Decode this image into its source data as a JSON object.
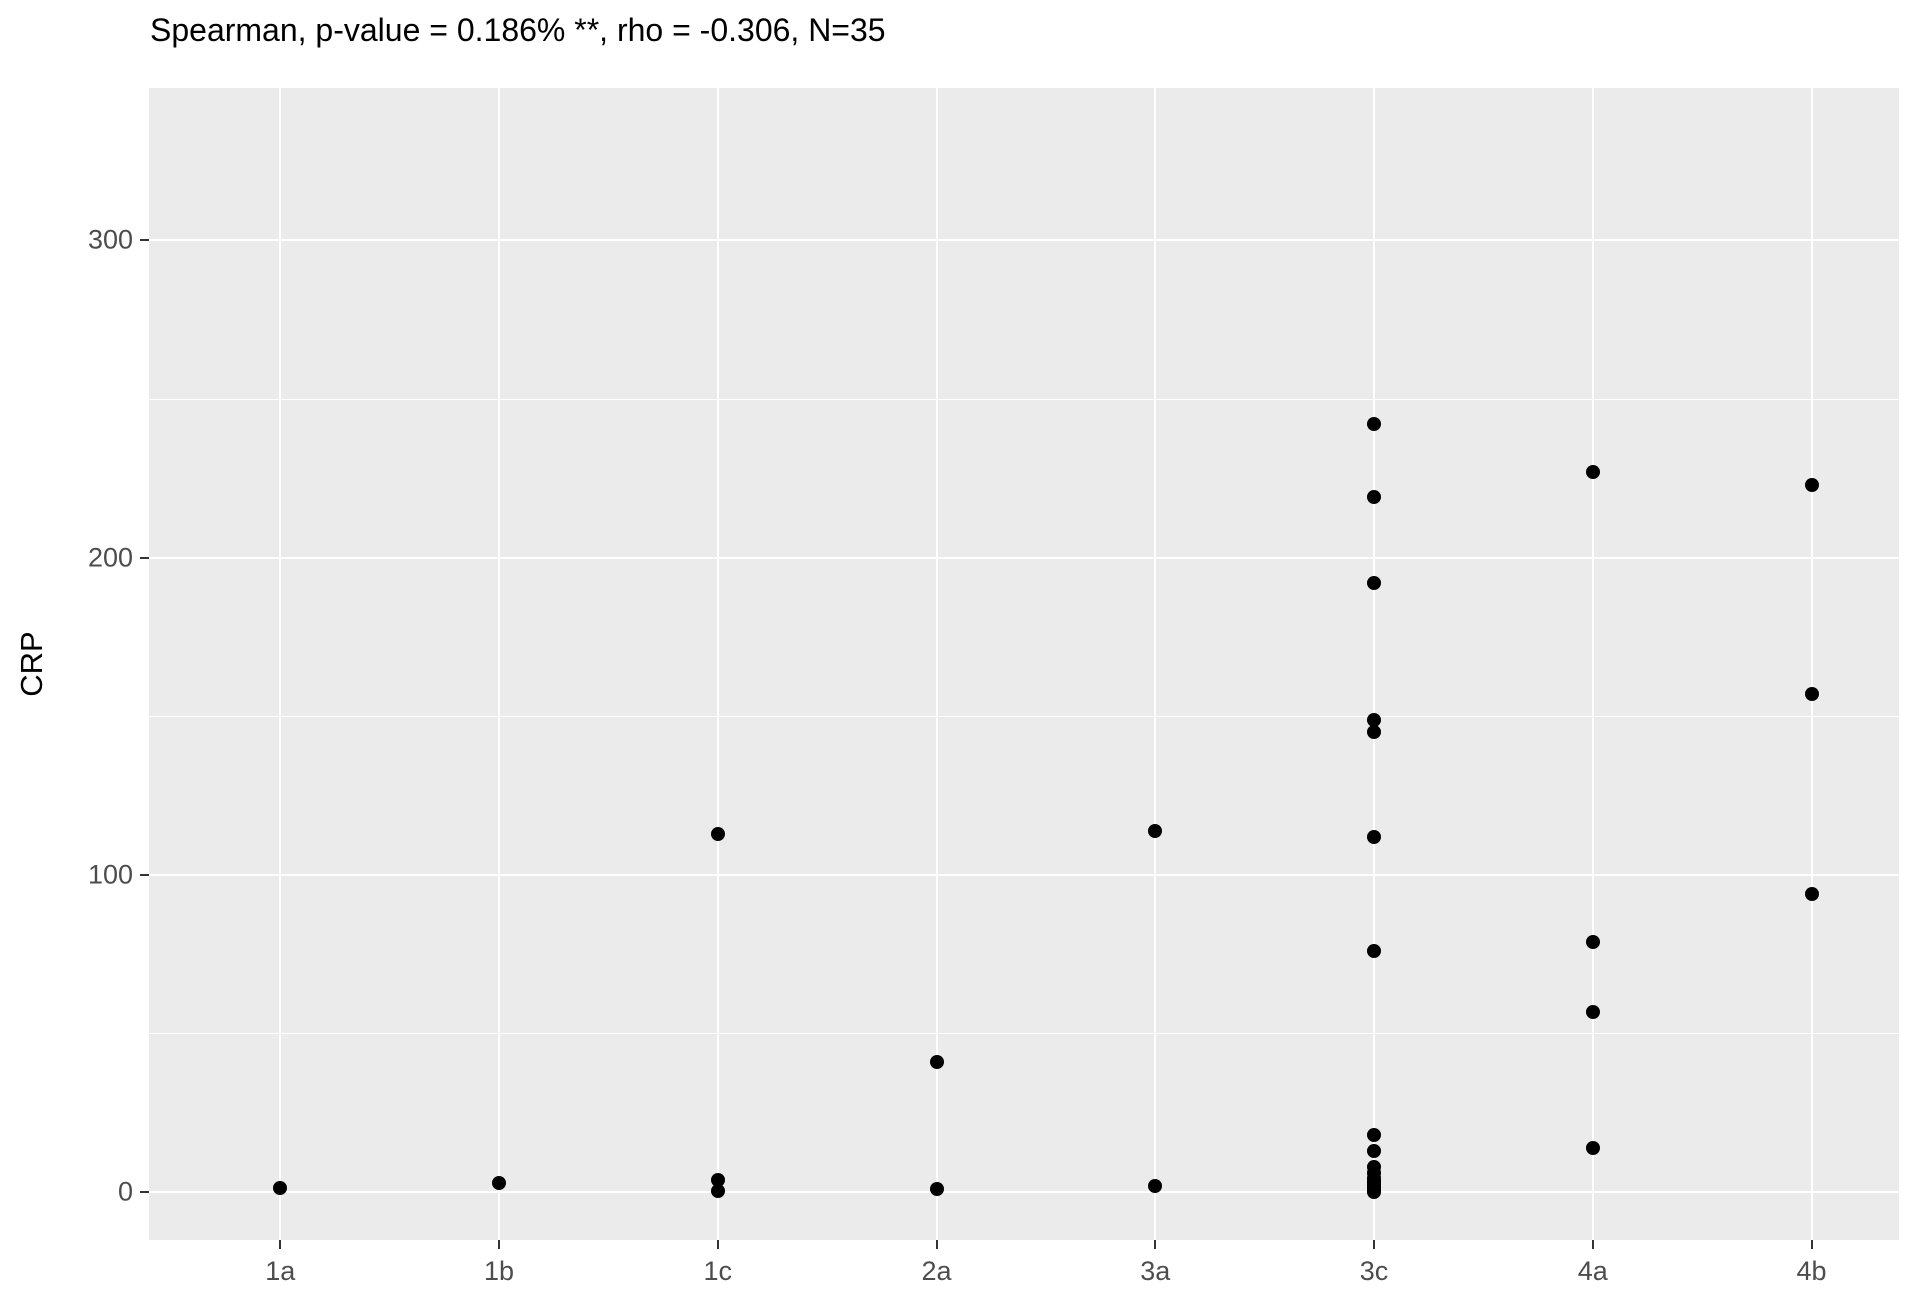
{
  "title": "Spearman, p-value = 0.186% **, rho = -0.306, N=35",
  "colors": {
    "background": "#ffffff",
    "panel_background": "#EBEBEB",
    "gridline": "#ffffff",
    "tick_mark": "#333333",
    "tick_label": "#4d4d4d",
    "title_text": "#000000",
    "point": "#000000"
  },
  "chart_data": {
    "type": "scatter",
    "title": "Spearman, p-value = 0.186% **, rho = -0.306, N=35",
    "xlabel": "",
    "ylabel": "CRP",
    "categories": [
      "1a",
      "1b",
      "1c",
      "2a",
      "3a",
      "3c",
      "4a",
      "4b"
    ],
    "y_major_ticks": [
      0,
      100,
      200,
      300
    ],
    "y_major_tick_labels": [
      "0",
      "100",
      "200",
      "300"
    ],
    "y_minor_ticks": [
      50,
      150,
      250
    ],
    "ylim": [
      -15,
      348
    ],
    "grid": "major-and-minor",
    "legend_position": "none",
    "n_points": 35,
    "points_by_category": [
      {
        "category": "1a",
        "values": [
          1.5
        ]
      },
      {
        "category": "1b",
        "values": [
          3
        ]
      },
      {
        "category": "1c",
        "values": [
          113,
          4,
          0.5
        ]
      },
      {
        "category": "2a",
        "values": [
          41,
          1
        ]
      },
      {
        "category": "3a",
        "values": [
          114,
          2
        ]
      },
      {
        "category": "3c",
        "values": [
          242,
          219,
          192,
          149,
          145,
          112,
          76,
          18,
          13,
          8,
          6,
          4.5,
          3.5,
          3,
          2.5,
          2,
          1.5,
          1,
          0.5,
          0.2
        ]
      },
      {
        "category": "4a",
        "values": [
          227,
          79,
          57,
          14
        ]
      },
      {
        "category": "4b",
        "values": [
          223,
          157,
          94
        ]
      }
    ]
  }
}
